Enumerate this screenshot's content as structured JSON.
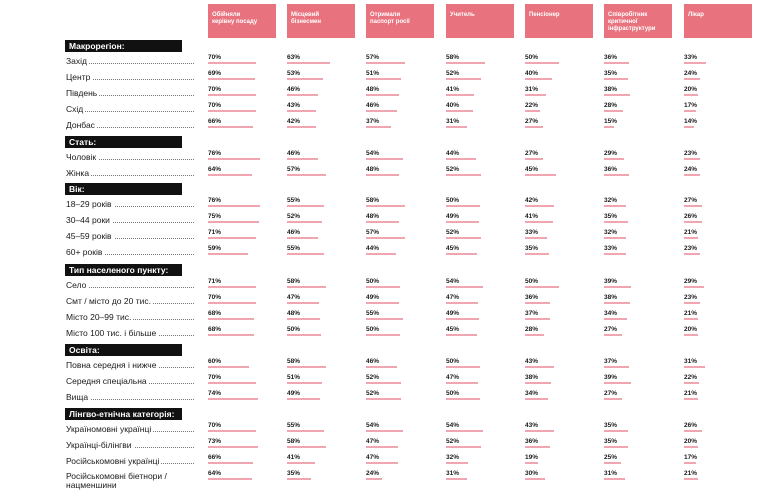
{
  "chart_data": {
    "type": "bar",
    "columns": [
      "Обійняли керівну посаду",
      "Місцевий бізнесмен",
      "Отримали паспорт росії",
      "Учитель",
      "Пенсіонер",
      "Співробітник критичної інфраструктури",
      "Лікар"
    ],
    "column_lines": [
      [
        "Обійняли",
        "керівну посаду"
      ],
      [
        "Місцевий",
        "бізнесмен"
      ],
      [
        "Отримали",
        "паспорт росії"
      ],
      [
        "Учитель"
      ],
      [
        "Пенсіонер"
      ],
      [
        "Співробітник",
        "критичної",
        "інфраструктури"
      ],
      [
        "Лікар"
      ]
    ],
    "value_unit": "%",
    "groups": [
      {
        "title": "Макрорегіон:",
        "rows": [
          {
            "label": "Захід",
            "values": [
              70,
              63,
              57,
              58,
              50,
              36,
              33
            ]
          },
          {
            "label": "Центр",
            "values": [
              69,
              53,
              51,
              52,
              40,
              35,
              24
            ]
          },
          {
            "label": "Південь",
            "values": [
              70,
              46,
              48,
              41,
              31,
              38,
              20
            ]
          },
          {
            "label": "Схід",
            "values": [
              70,
              43,
              46,
              40,
              22,
              28,
              17
            ]
          },
          {
            "label": "Донбас",
            "values": [
              66,
              42,
              37,
              31,
              27,
              15,
              14
            ]
          }
        ]
      },
      {
        "title": "Стать:",
        "rows": [
          {
            "label": "Чоловік",
            "values": [
              76,
              46,
              54,
              44,
              27,
              29,
              23
            ]
          },
          {
            "label": "Жінка",
            "values": [
              64,
              57,
              48,
              52,
              45,
              36,
              24
            ]
          }
        ]
      },
      {
        "title": "Вік:",
        "rows": [
          {
            "label": "18–29 років",
            "values": [
              76,
              55,
              58,
              50,
              42,
              32,
              27
            ]
          },
          {
            "label": "30–44 роки",
            "values": [
              75,
              52,
              48,
              49,
              41,
              35,
              26
            ]
          },
          {
            "label": "45–59 років",
            "values": [
              71,
              46,
              57,
              52,
              33,
              32,
              21
            ]
          },
          {
            "label": "60+ років",
            "values": [
              59,
              55,
              44,
              45,
              35,
              33,
              23
            ]
          }
        ]
      },
      {
        "title": "Тип населеного пункту:",
        "rows": [
          {
            "label": "Село",
            "values": [
              71,
              58,
              50,
              54,
              50,
              39,
              29
            ]
          },
          {
            "label": "Смт / місто до 20 тис.",
            "values": [
              70,
              47,
              49,
              47,
              36,
              38,
              23
            ]
          },
          {
            "label": "Місто 20–99 тис.",
            "values": [
              68,
              48,
              55,
              49,
              37,
              34,
              21
            ]
          },
          {
            "label": "Місто 100 тис. і більше",
            "values": [
              68,
              50,
              50,
              45,
              28,
              27,
              20
            ]
          }
        ]
      },
      {
        "title": "Освіта:",
        "rows": [
          {
            "label": "Повна середня і нижче",
            "values": [
              60,
              58,
              46,
              50,
              43,
              37,
              31
            ]
          },
          {
            "label": "Середня спеціальна",
            "values": [
              70,
              51,
              52,
              47,
              38,
              39,
              22
            ]
          },
          {
            "label": "Вища",
            "values": [
              74,
              49,
              52,
              50,
              34,
              27,
              21
            ]
          }
        ]
      },
      {
        "title": "Лінгво-етнічна категорія:",
        "rows": [
          {
            "label": "Україномовні українці",
            "values": [
              70,
              55,
              54,
              54,
              43,
              35,
              26
            ]
          },
          {
            "label": "Українці-білінгви",
            "values": [
              73,
              58,
              47,
              52,
              36,
              35,
              20
            ]
          },
          {
            "label": "Російськомовні українці",
            "values": [
              66,
              41,
              47,
              32,
              19,
              25,
              17
            ]
          },
          {
            "label": "Російськомовні біетнори / нацменшини",
            "label_lines": [
              "Російськомовні біетнори /",
              "нацменшини"
            ],
            "values": [
              64,
              35,
              24,
              31,
              30,
              31,
              21
            ]
          }
        ]
      }
    ]
  }
}
